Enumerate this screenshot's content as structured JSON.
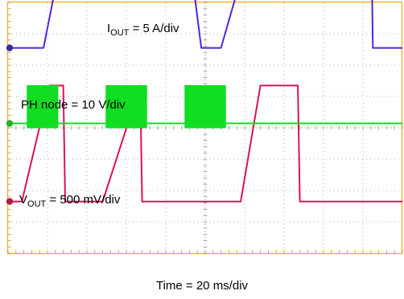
{
  "chart_data": {
    "type": "line",
    "title": "",
    "xlabel": "Time = 20 ms/div",
    "ylabel": "",
    "x_divisions": 10,
    "y_divisions": 8,
    "grid": true,
    "background": "#ffffff",
    "frame_color": "#f2b233",
    "grid_color": "#9a9a9a",
    "x_unit": "ms",
    "xlim": [
      0,
      200
    ],
    "series": [
      {
        "name_main": "I",
        "name_sub": "OUT",
        "scale": " = 5 A/div",
        "unit": "A",
        "color": "#5522dd",
        "marker_color": "#3a2aa8",
        "ground_div": 6.55,
        "volts_per_div": 5,
        "x": [
          0,
          18,
          29,
          37,
          48,
          70,
          89,
          98,
          108,
          124,
          127,
          137,
          146,
          161,
          184,
          185,
          195,
          200
        ],
        "y": [
          0,
          0,
          17.5,
          22.3,
          22.3,
          22.3,
          22.3,
          0,
          0,
          17.5,
          22.3,
          22.3,
          22.3,
          22.3,
          22.3,
          0,
          0,
          0
        ]
      },
      {
        "name_main": "PH node",
        "name_sub": "",
        "scale": " = 10 V/div",
        "unit": "V",
        "color": "#11dd22",
        "marker_color": "#1fb02a",
        "ground_div": 4.14,
        "volts_per_div": 10,
        "switching": [
          [
            9.5,
            25.5
          ],
          [
            49.5,
            70.5
          ],
          [
            89.5,
            110.5
          ]
        ],
        "high_level_v": 12.2,
        "low_level_v": 0
      },
      {
        "name_main": "V",
        "name_sub": "OUT",
        "scale": " = 500 mV/div",
        "unit": "V",
        "color": "#dd1155",
        "marker_color": "#b01c40",
        "ground_div": 1.65,
        "volts_per_div": 0.5,
        "x": [
          0,
          7,
          21,
          28,
          29,
          48,
          67,
          68,
          88,
          117,
          118,
          128,
          147,
          148,
          185,
          186,
          200
        ],
        "y": [
          0,
          0,
          1.85,
          1.85,
          0,
          0,
          1.85,
          0,
          0,
          0,
          0,
          1.85,
          1.85,
          0,
          0,
          0,
          0
        ]
      }
    ]
  }
}
